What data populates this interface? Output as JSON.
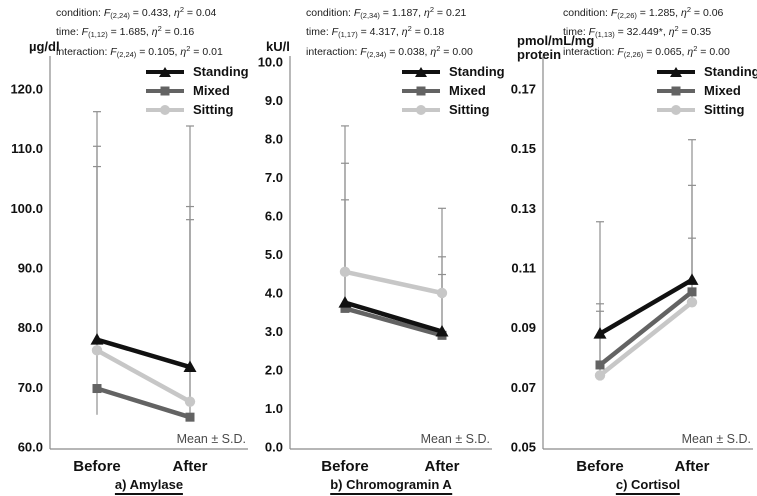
{
  "figure_note": "Mean ± S.D.",
  "legend": {
    "items": [
      {
        "label": "Standing",
        "color": "#111111",
        "marker": "triangle"
      },
      {
        "label": "Mixed",
        "color": "#636363",
        "marker": "square"
      },
      {
        "label": "Sitting",
        "color": "#c7c7c7",
        "marker": "circle"
      }
    ]
  },
  "chart_data": [
    {
      "type": "line",
      "title": "a) Amylase",
      "unit": "µg/dl",
      "categories": [
        "Before",
        "After"
      ],
      "ylim": [
        60,
        120
      ],
      "ytick_values": [
        60,
        70,
        80,
        90,
        100,
        110,
        120
      ],
      "ytick_labels": [
        "60.0",
        "70.0",
        "80.0",
        "90.0",
        "100.0",
        "110.0",
        "120.0"
      ],
      "grid": false,
      "legend_position": "top-right",
      "note": "Mean ± S.D.",
      "stats": [
        {
          "label": "condition",
          "df": "(2,24)",
          "F": "0.433",
          "eta2": "0.04"
        },
        {
          "label": "time",
          "df": "(1,12)",
          "F": "1.685",
          "eta2": "0.16"
        },
        {
          "label": "interaction",
          "df": "(2,24)",
          "F": "0.105",
          "eta2": "0.01"
        }
      ],
      "series": [
        {
          "name": "Standing",
          "marker": "triangle",
          "color": "#111111",
          "values": [
            78.0,
            73.4
          ],
          "sd_top": [
            116.2,
            113.8
          ]
        },
        {
          "name": "Mixed",
          "marker": "square",
          "color": "#636363",
          "values": [
            69.8,
            65.0
          ],
          "sd_top": [
            107.0,
            98.1
          ]
        },
        {
          "name": "Sitting",
          "marker": "circle",
          "color": "#c7c7c7",
          "values": [
            76.2,
            67.6
          ],
          "sd_top": [
            110.4,
            100.3
          ]
        }
      ],
      "extra_whisker_tails": [
        {
          "category_index": 0,
          "from": 69.8,
          "to": 65.4
        }
      ]
    },
    {
      "type": "line",
      "title": "b) Chromogramin A",
      "unit": "kU/l",
      "categories": [
        "Before",
        "After"
      ],
      "ylim": [
        0,
        10
      ],
      "ytick_values": [
        0,
        1,
        2,
        3,
        4,
        5,
        6,
        7,
        8,
        9,
        10
      ],
      "ytick_labels": [
        "0.0",
        "1.0",
        "2.0",
        "3.0",
        "4.0",
        "5.0",
        "6.0",
        "7.0",
        "8.0",
        "9.0",
        "10.0"
      ],
      "grid": false,
      "legend_position": "top-right",
      "note": "Mean ± S.D.",
      "stats": [
        {
          "label": "condition",
          "df": "(2,34)",
          "F": "1.187",
          "eta2": "0.21"
        },
        {
          "label": "time",
          "df": "(1,17)",
          "F": "4.317",
          "eta2": "0.18"
        },
        {
          "label": "interaction",
          "df": "(2,34)",
          "F": "0.038",
          "eta2": "0.00"
        }
      ],
      "series": [
        {
          "name": "Standing",
          "marker": "triangle",
          "color": "#111111",
          "values": [
            3.75,
            3.0
          ],
          "sd_top": [
            7.37,
            4.94
          ]
        },
        {
          "name": "Mixed",
          "marker": "square",
          "color": "#636363",
          "values": [
            3.6,
            2.9
          ],
          "sd_top": [
            6.42,
            4.48
          ]
        },
        {
          "name": "Sitting",
          "marker": "circle",
          "color": "#c7c7c7",
          "values": [
            4.55,
            4.0
          ],
          "sd_top": [
            8.34,
            6.2
          ]
        }
      ],
      "extra_whisker_tails": []
    },
    {
      "type": "line",
      "title": "c) Cortisol",
      "unit": "pmol/mL/mg\nprotein",
      "categories": [
        "Before",
        "After"
      ],
      "ylim": [
        0.05,
        0.17
      ],
      "ytick_values": [
        0.05,
        0.07,
        0.09,
        0.11,
        0.13,
        0.15,
        0.17
      ],
      "ytick_labels": [
        "0.05",
        "0.07",
        "0.09",
        "0.11",
        "0.13",
        "0.15",
        "0.17"
      ],
      "grid": false,
      "legend_position": "top-right",
      "note": "Mean ± S.D.",
      "stats": [
        {
          "label": "condition",
          "df": "(2,26)",
          "F": "1.285",
          "eta2": "0.06"
        },
        {
          "label": "time",
          "df": "(1,13)",
          "F": "32.449*",
          "eta2": "0.35"
        },
        {
          "label": "interaction",
          "df": "(2,26)",
          "F": "0.065",
          "eta2": "0.00"
        }
      ],
      "series": [
        {
          "name": "Standing",
          "marker": "triangle",
          "color": "#111111",
          "values": [
            0.088,
            0.106
          ],
          "sd_top": [
            0.1255,
            0.153
          ]
        },
        {
          "name": "Mixed",
          "marker": "square",
          "color": "#636363",
          "values": [
            0.0775,
            0.102
          ],
          "sd_top": [
            0.098,
            0.1377
          ]
        },
        {
          "name": "Sitting",
          "marker": "circle",
          "color": "#c7c7c7",
          "values": [
            0.074,
            0.0985
          ],
          "sd_top": [
            0.0955,
            0.12
          ]
        }
      ],
      "extra_whisker_tails": []
    }
  ]
}
